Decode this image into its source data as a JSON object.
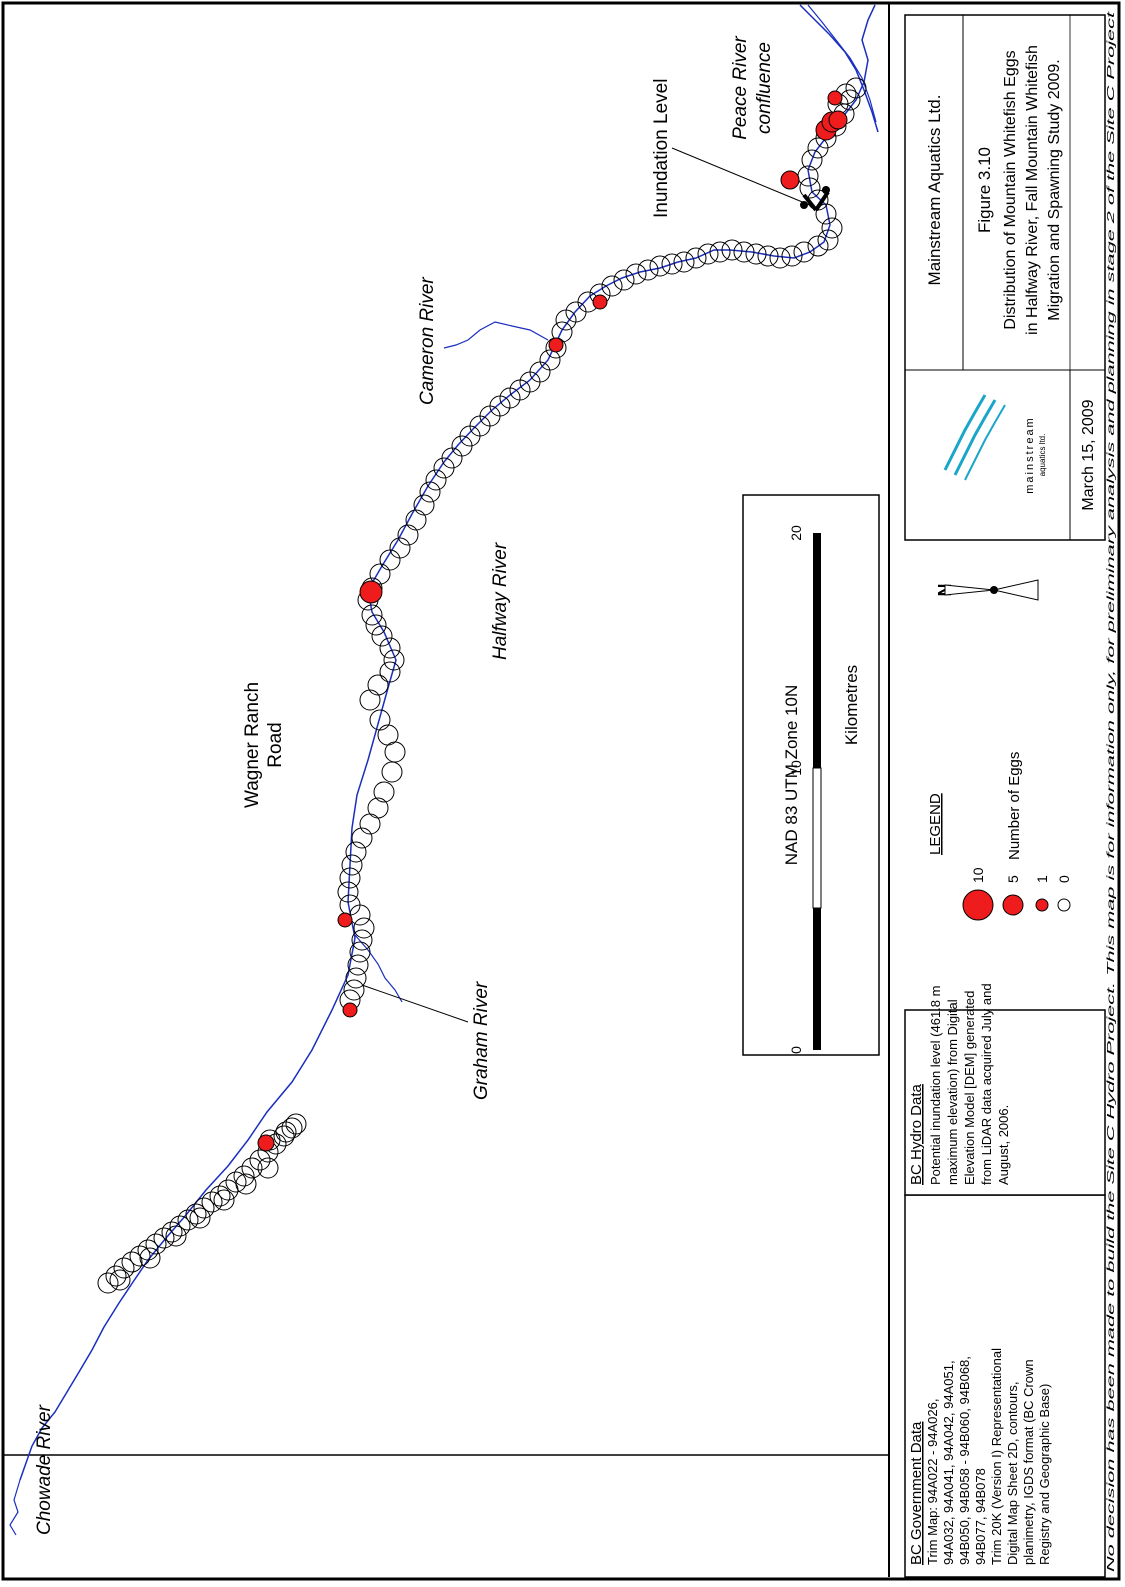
{
  "labels": {
    "chowade": "Chowade River",
    "graham": "Graham River",
    "wagner_1": "Wagner Ranch",
    "wagner_2": "Road",
    "halfway": "Halfway River",
    "cameron": "Cameron River",
    "inundation": "Inundation Level",
    "peace_1": "Peace River",
    "peace_2": "confluence"
  },
  "scale": {
    "datum": "NAD 83 UTM Zone 10N",
    "unit": "Kilometres",
    "ticks": [
      "0",
      "10",
      "20"
    ]
  },
  "legend": {
    "title": "LEGEND",
    "caption": "Number of Eggs",
    "classes": [
      {
        "value": "10",
        "fill": "#ee1c1c",
        "size": 10
      },
      {
        "value": "5",
        "fill": "#ee1c1c",
        "size": 5
      },
      {
        "value": "1",
        "fill": "#ee1c1c",
        "size": 1
      },
      {
        "value": "0",
        "fill": "#ffffff",
        "size": 0
      }
    ]
  },
  "north": "N",
  "title_block": {
    "company": "Mainstream Aquatics Ltd.",
    "figure_number": "Figure 3.10",
    "figure_title": [
      "Distribution of Mountain Whitefish Eggs",
      "in Halfway River, Fall Mountain Whitefish",
      "Migration and Spawning Study 2009."
    ],
    "logo_text": "mainstream",
    "logo_sub": "aquatics ltd.",
    "date": "March 15, 2009"
  },
  "bc_government": {
    "title": "BC Government Data",
    "lines": [
      "Trim Map: 94A022 - 94A026,",
      "94A032, 94A041, 94A042, 94A051,",
      "94B050, 94B058 - 94B060, 94B068,",
      "94B077, 94B078",
      "Trim 20K (Version I) Representational",
      "Digital Map Sheet 2D, contours,",
      "planimetry, IGDS format (BC Crown",
      "Registry and Geographic Base)"
    ]
  },
  "bc_hydro": {
    "title": "BC Hydro Data",
    "lines": [
      "Potential inundation level (461.8 m",
      "maximum elevation) from Digital",
      "Elevation Model [DEM] generated",
      "from LiDAR data acquired July and",
      "August, 2006."
    ]
  },
  "disclaimer": "No decision has been made to build the Site C Hydro Project. This map is for information only, for preliminary analysis and planning in stage 2 of the Site C Project",
  "colors": {
    "river": "#1a2fbf",
    "egg_fill": "#ee1c1c",
    "inundation_marker": "#000000",
    "logo": "#1aa6c8"
  }
}
